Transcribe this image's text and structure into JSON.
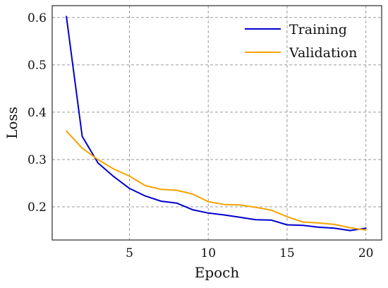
{
  "chart_data": {
    "type": "line",
    "xlabel": "Epoch",
    "ylabel": "Loss",
    "xlim": [
      0.1,
      21
    ],
    "ylim": [
      0.13,
      0.625
    ],
    "xticks": [
      5,
      10,
      15,
      20
    ],
    "yticks": [
      0.2,
      0.3,
      0.4,
      0.5,
      0.6
    ],
    "grid": true,
    "legend_position": "top-right",
    "x": [
      1,
      2,
      3,
      4,
      5,
      6,
      7,
      8,
      9,
      10,
      11,
      12,
      13,
      14,
      15,
      16,
      17,
      18,
      19,
      20
    ],
    "series": [
      {
        "name": "Training",
        "color": "#0000cc",
        "values": [
          0.602,
          0.349,
          0.293,
          0.264,
          0.239,
          0.223,
          0.212,
          0.208,
          0.194,
          0.187,
          0.183,
          0.178,
          0.173,
          0.172,
          0.162,
          0.161,
          0.157,
          0.155,
          0.15,
          0.155
        ]
      },
      {
        "name": "Validation",
        "color": "#f5a300",
        "values": [
          0.36,
          0.324,
          0.3,
          0.28,
          0.265,
          0.245,
          0.237,
          0.235,
          0.227,
          0.211,
          0.205,
          0.204,
          0.199,
          0.193,
          0.179,
          0.168,
          0.166,
          0.163,
          0.156,
          0.151
        ]
      }
    ]
  }
}
